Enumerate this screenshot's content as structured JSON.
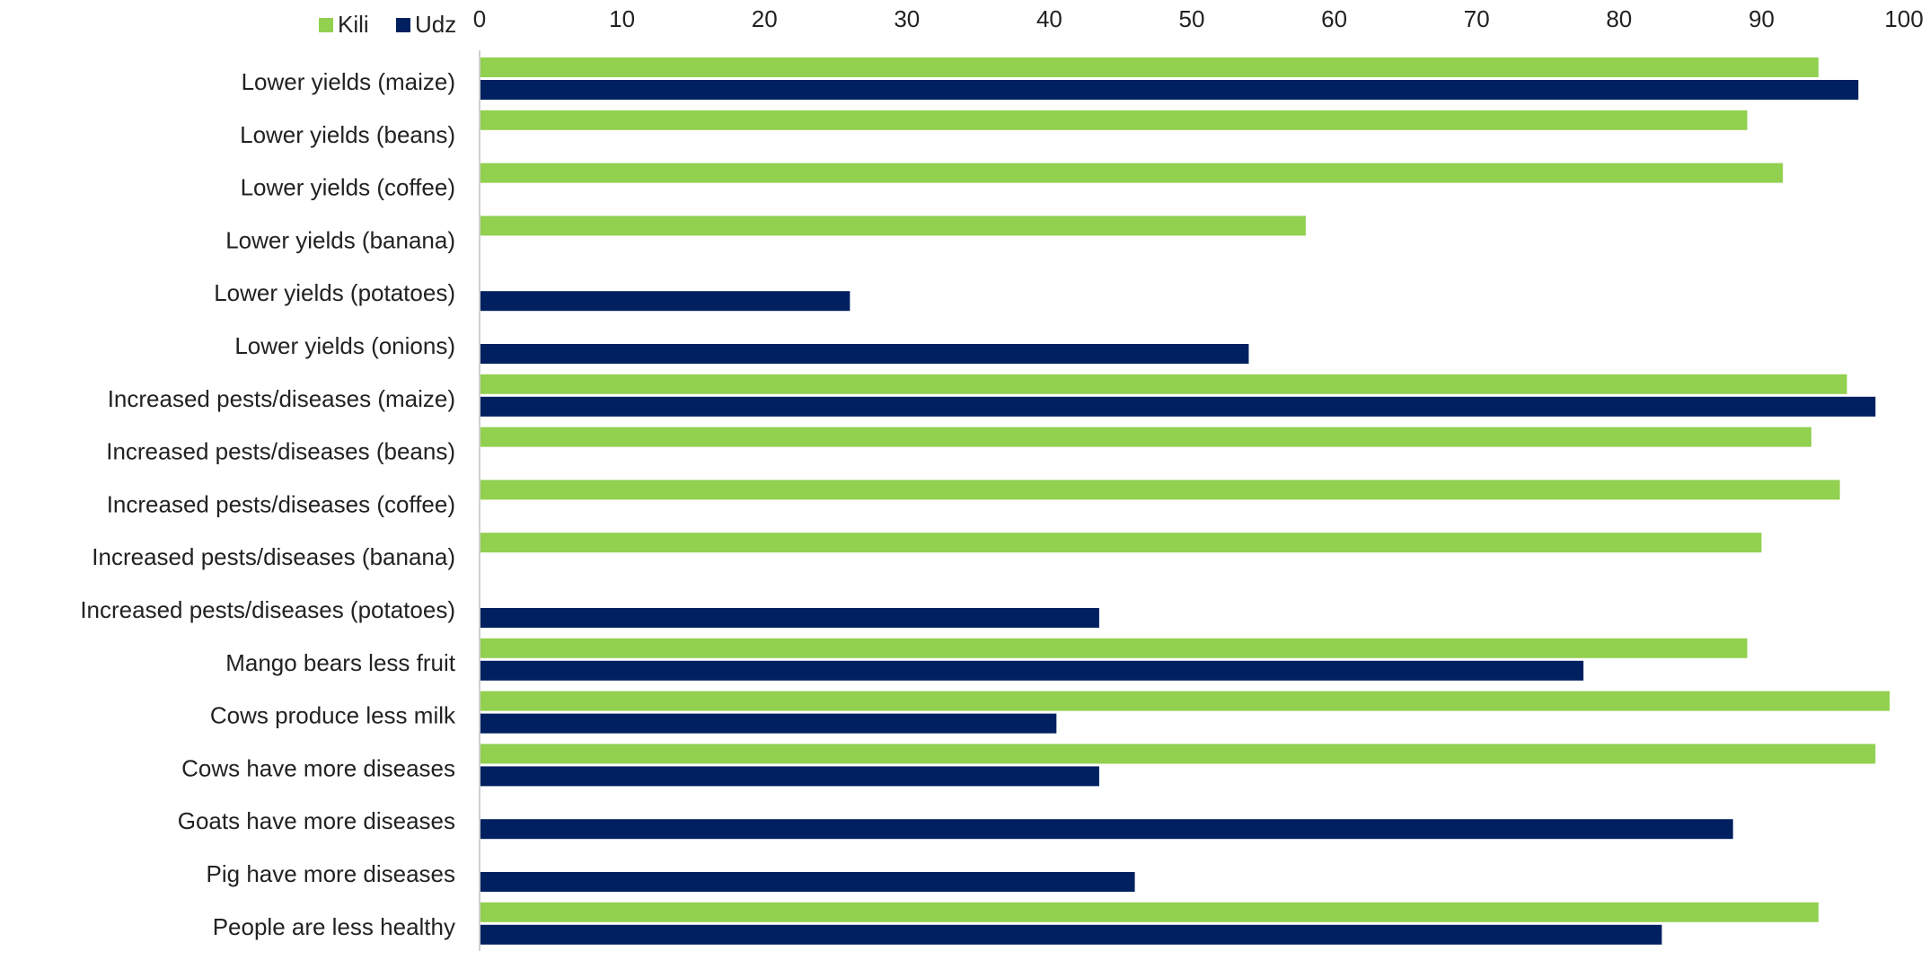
{
  "chart_data": {
    "type": "bar",
    "orientation": "horizontal",
    "title": "",
    "xlabel": "",
    "ylabel": "",
    "xlim": [
      0,
      100
    ],
    "x_ticks": [
      "0",
      "10",
      "20",
      "30",
      "40",
      "50",
      "60",
      "70",
      "80",
      "90",
      "100"
    ],
    "x_axis_position": "top",
    "grid": false,
    "legend": {
      "position": "top-left",
      "entries": [
        "Kili",
        "Udz"
      ]
    },
    "categories": [
      "Lower yields (maize)",
      "Lower yields (beans)",
      "Lower yields (coffee)",
      "Lower yields (banana)",
      "Lower yields (potatoes)",
      "Lower yields (onions)",
      "Increased pests/diseases (maize)",
      "Increased pests/diseases (beans)",
      "Increased pests/diseases (coffee)",
      "Increased pests/diseases (banana)",
      "Increased pests/diseases (potatoes)",
      "Mango bears less fruit",
      "Cows produce less milk",
      "Cows have more diseases",
      "Goats have more diseases",
      "Pig have more diseases",
      "People are less healthy"
    ],
    "series": [
      {
        "name": "Kili",
        "color": "#92d050",
        "values": [
          94,
          89,
          91.5,
          58,
          null,
          null,
          96,
          93.5,
          95.5,
          90,
          null,
          89,
          99,
          98,
          null,
          null,
          94
        ]
      },
      {
        "name": "Udz",
        "color": "#002060",
        "values": [
          96.8,
          null,
          null,
          null,
          26,
          54,
          98,
          null,
          null,
          null,
          43.5,
          77.5,
          40.5,
          43.5,
          88,
          46,
          83
        ]
      }
    ]
  }
}
